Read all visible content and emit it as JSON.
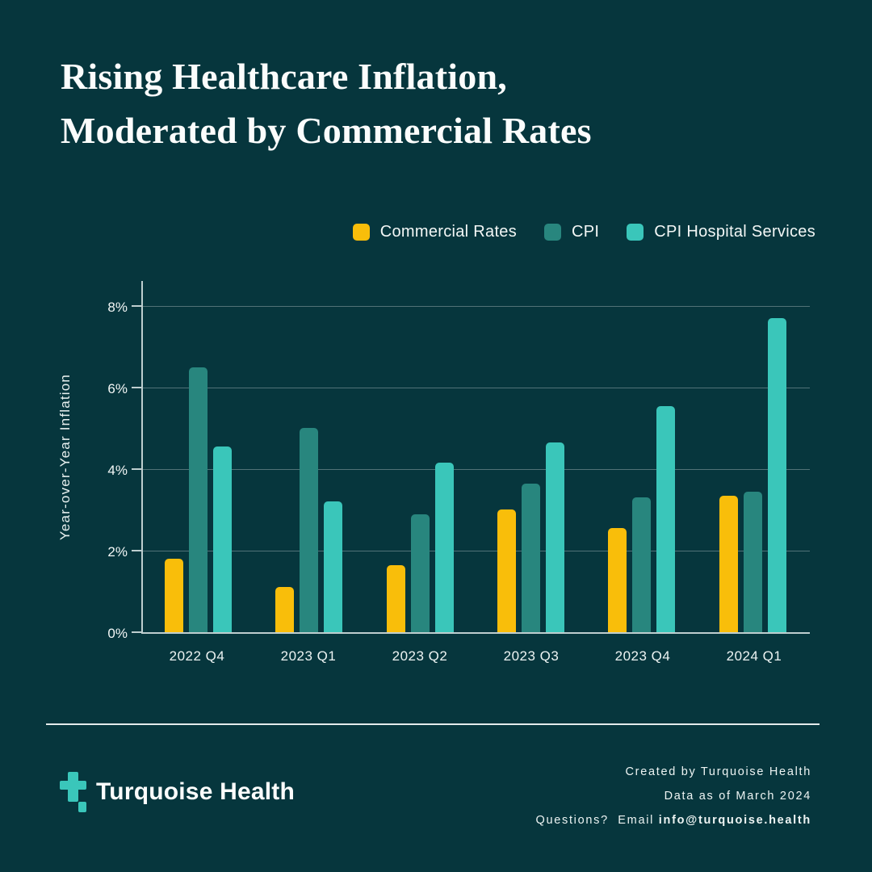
{
  "title": {
    "line1": "Rising Healthcare Inflation,",
    "line2": "Moderated by Commercial Rates"
  },
  "colors": {
    "background": "#06363D",
    "commercial_rates": "#F9BE0A",
    "cpi": "#28867E",
    "cpi_hospital_services": "#3AC6BA",
    "text": "#F3F7F6"
  },
  "chart_data": {
    "type": "bar",
    "title": "Rising Healthcare Inflation, Moderated by Commercial Rates",
    "categories": [
      "2022 Q4",
      "2023 Q1",
      "2023 Q2",
      "2023 Q3",
      "2023 Q4",
      "2024 Q1"
    ],
    "series": [
      {
        "name": "Commercial Rates",
        "color": "#F9BE0A",
        "values": [
          1.8,
          1.1,
          1.65,
          3.0,
          2.55,
          3.35
        ]
      },
      {
        "name": "CPI",
        "color": "#28867E",
        "values": [
          6.5,
          5.0,
          2.9,
          3.65,
          3.3,
          3.45
        ]
      },
      {
        "name": "CPI Hospital Services",
        "color": "#3AC6BA",
        "values": [
          4.55,
          3.2,
          4.15,
          4.65,
          5.55,
          7.7
        ]
      }
    ],
    "xlabel": "",
    "ylabel": "Year-over-Year Inflation",
    "ylim": [
      0,
      8
    ],
    "yticks": [
      "0%",
      "2%",
      "4%",
      "6%",
      "8%"
    ],
    "grid": true,
    "legend_position": "top-right"
  },
  "footer": {
    "brand": "Turquoise Health",
    "credit_line1": "Created by Turquoise Health",
    "credit_line2": "Data as of March 2024",
    "credit_line3_prefix": "Questions?  Email ",
    "credit_line3_email": "info@turquoise.health"
  }
}
